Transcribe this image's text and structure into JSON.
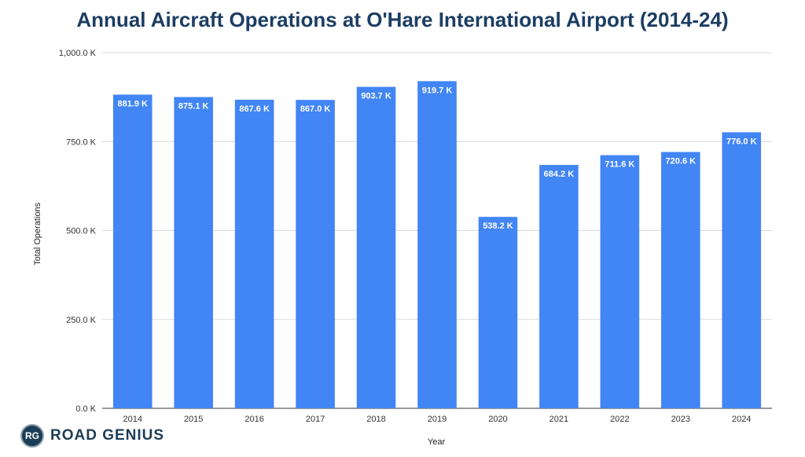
{
  "chart_data": {
    "type": "bar",
    "title": "Annual Aircraft Operations at O'Hare International Airport (2014-24)",
    "xlabel": "Year",
    "ylabel": "Total Operations",
    "categories": [
      "2014",
      "2015",
      "2016",
      "2017",
      "2018",
      "2019",
      "2020",
      "2021",
      "2022",
      "2023",
      "2024"
    ],
    "values": [
      881.9,
      875.1,
      867.6,
      867.0,
      903.7,
      919.7,
      538.2,
      684.2,
      711.6,
      720.6,
      776.0
    ],
    "value_labels": [
      "881.9 K",
      "875.1 K",
      "867.6 K",
      "867.0 K",
      "903.7 K",
      "919.7 K",
      "538.2 K",
      "684.2 K",
      "711.6 K",
      "720.6 K",
      "776.0 K"
    ],
    "ylim": [
      0,
      1000
    ],
    "yticks": [
      0,
      250,
      500,
      750,
      1000
    ],
    "ytick_labels": [
      "0.0 K",
      "250.0 K",
      "500.0 K",
      "750.0 K",
      "1,000.0 K"
    ],
    "grid": true,
    "bar_color": "#4285f4"
  },
  "branding": {
    "logo_initials": "RG",
    "logo_text": "ROAD GENIUS"
  }
}
